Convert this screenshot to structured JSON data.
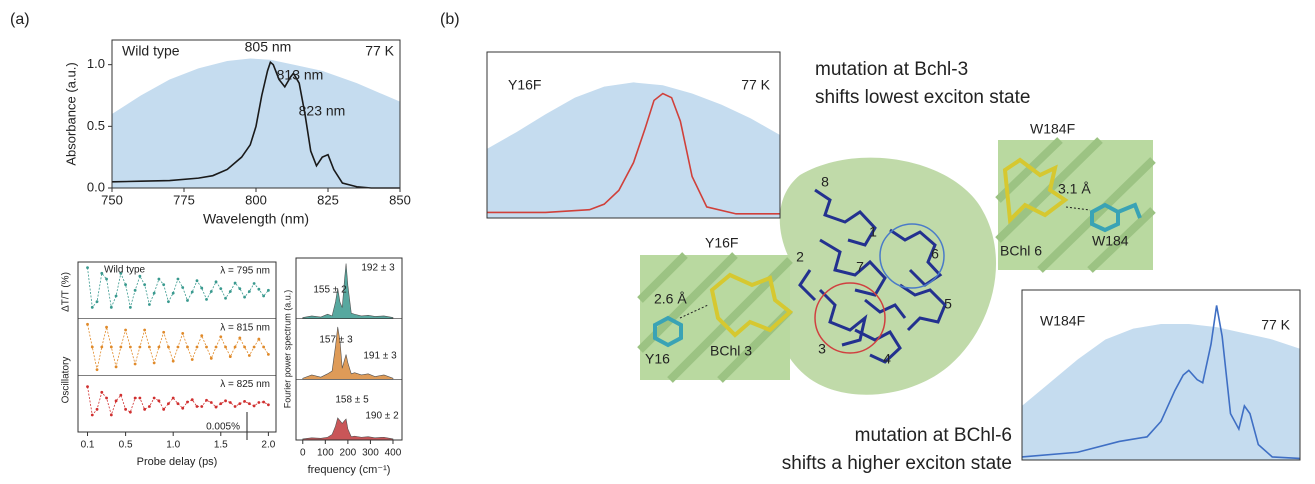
{
  "panel_labels": [
    "(a)",
    "(b)"
  ],
  "chart_data": [
    {
      "type": "line",
      "xlabel": "Wavelength (nm)",
      "ylabel": "Absorbance (a.u.)",
      "annotations": [
        "Wild type",
        "77 K",
        "805 nm",
        "813 nm",
        "823 nm"
      ],
      "xlim": [
        750,
        850
      ],
      "xticks": [
        750,
        775,
        800,
        825,
        850
      ],
      "ylim": [
        0,
        1.2
      ],
      "yticks": [
        {
          "value": 0,
          "label": "0.0"
        },
        0.5,
        {
          "value": 1,
          "label": "1.0"
        }
      ],
      "series": [
        {
          "color": "#c5dcef",
          "fill": true,
          "x": [
            750,
            760,
            770,
            780,
            790,
            798,
            805,
            813,
            823,
            835,
            850
          ],
          "values": [
            0.6,
            0.75,
            0.88,
            0.97,
            1.03,
            1.05,
            1.04,
            1.0,
            0.95,
            0.85,
            0.7
          ]
        },
        {
          "color": "#1a1a1a",
          "x": [
            750,
            760,
            770,
            780,
            785,
            790,
            795,
            798,
            800,
            802,
            804,
            805,
            806,
            808,
            810,
            812,
            813,
            815,
            817,
            819,
            821,
            823,
            825,
            827,
            830,
            835,
            840,
            850
          ],
          "values": [
            0.05,
            0.055,
            0.06,
            0.08,
            0.1,
            0.15,
            0.25,
            0.35,
            0.5,
            0.75,
            0.95,
            1.02,
            1.0,
            0.88,
            0.82,
            0.9,
            0.93,
            0.85,
            0.6,
            0.3,
            0.18,
            0.25,
            0.27,
            0.15,
            0.04,
            0.01,
            0,
            0
          ]
        }
      ]
    },
    {
      "type": "line",
      "panels": "separate",
      "markers": true,
      "xlabel": "Probe delay (ps)",
      "ylabels": [
        "ΔT/T (%)",
        "Oscillatory"
      ],
      "annotations": [
        "Wild type",
        "0.005%"
      ],
      "xlim": [
        0,
        2.08
      ],
      "xticks": [
        0.1,
        0.5,
        {
          "value": 1,
          "label": "1.0"
        },
        1.5,
        {
          "value": 2,
          "label": "2.0"
        }
      ],
      "ylim": [
        -0.005,
        0.005
      ],
      "x": [
        0.1,
        0.15,
        0.2,
        0.25,
        0.3,
        0.35,
        0.4,
        0.45,
        0.5,
        0.55,
        0.6,
        0.65,
        0.7,
        0.75,
        0.8,
        0.85,
        0.9,
        0.95,
        1,
        1.05,
        1.1,
        1.15,
        1.2,
        1.25,
        1.3,
        1.35,
        1.4,
        1.45,
        1.5,
        1.55,
        1.6,
        1.65,
        1.7,
        1.75,
        1.8,
        1.85,
        1.9,
        1.95,
        2
      ],
      "series": [
        {
          "name": "λ = 795 nm",
          "color": "#3a9a8f",
          "values": [
            0.004,
            -0.003,
            -0.002,
            0.003,
            0.002,
            -0.003,
            -0.001,
            0.003,
            0.001,
            -0.003,
            0,
            0.0025,
            0.001,
            -0.0025,
            -0.0005,
            0.002,
            0.001,
            -0.002,
            -0.0005,
            0.002,
            0.0005,
            -0.0018,
            -0.0003,
            0.0017,
            0.0004,
            -0.0016,
            -0.0002,
            0.0015,
            0.0003,
            -0.0014,
            -0.0002,
            0.0013,
            0.0003,
            -0.0012,
            -0.0002,
            0.0012,
            0.0002,
            -0.001,
            0
          ]
        },
        {
          "name": "λ = 815 nm",
          "color": "#e08a2a",
          "values": [
            0.004,
            0,
            -0.004,
            0,
            0.0035,
            0,
            -0.0035,
            0,
            0.003,
            0,
            -0.003,
            0,
            0.003,
            0,
            -0.0028,
            0,
            0.0026,
            0,
            -0.0025,
            0,
            0.0024,
            0,
            -0.0022,
            0,
            0.002,
            0,
            -0.002,
            0,
            0.0018,
            0,
            -0.0017,
            0,
            0.0016,
            0,
            -0.0015,
            0,
            0.0014,
            0,
            -0.0013
          ]
        },
        {
          "name": "λ = 825 nm",
          "color": "#d03030",
          "values": [
            0.003,
            -0.002,
            -0.001,
            0.002,
            0.001,
            -0.002,
            0.0005,
            0.0015,
            -0.001,
            -0.0015,
            0.001,
            0.001,
            -0.001,
            -0.0005,
            0.001,
            0.0005,
            -0.001,
            0,
            0.001,
            0,
            -0.0008,
            0.0003,
            0.0007,
            -0.0005,
            -0.0005,
            0.0006,
            0.0002,
            -0.0006,
            0,
            0.0005,
            0.0002,
            -0.0005,
            0,
            0.0004,
            0,
            -0.0004,
            0.0002,
            0.0003,
            -0.0002
          ]
        }
      ]
    },
    {
      "type": "area",
      "panels": "separate",
      "xlabel": "frequency (cm⁻¹)",
      "ylabel": "Fourier power spectrum (a.u.)",
      "xlim": [
        -30,
        440
      ],
      "xticks": [
        0,
        100,
        200,
        300,
        400
      ],
      "ylim": [
        0,
        1.1
      ],
      "x": [
        0,
        40,
        80,
        110,
        130,
        145,
        155,
        165,
        175,
        185,
        192,
        200,
        215,
        230,
        260,
        290,
        320,
        360,
        400
      ],
      "series": [
        {
          "color": "#3a9a8f",
          "peak_labels": [
            "155 ± 2",
            "192 ± 3"
          ],
          "values": [
            0.02,
            0.05,
            0.03,
            0.08,
            0.05,
            0.3,
            0.55,
            0.3,
            0.2,
            0.7,
            1.0,
            0.6,
            0.1,
            0.08,
            0.05,
            0.06,
            0.04,
            0.05,
            0.02
          ]
        },
        {
          "color": "#d98a3c",
          "peak_labels": [
            "157 ± 3",
            "191 ± 3"
          ],
          "values": [
            0.02,
            0.08,
            0.04,
            0.1,
            0.15,
            0.6,
            0.95,
            0.7,
            0.2,
            0.35,
            0.45,
            0.3,
            0.1,
            0.12,
            0.08,
            0.1,
            0.05,
            0.08,
            0.02
          ]
        },
        {
          "color": "#c0393b",
          "peak_labels": [
            "158 ± 5",
            "190 ± 2"
          ],
          "values": [
            0.02,
            0.04,
            0.03,
            0.05,
            0.1,
            0.25,
            0.4,
            0.35,
            0.3,
            0.35,
            0.38,
            0.2,
            0.06,
            0.07,
            0.05,
            0.06,
            0.04,
            0.05,
            0.02
          ]
        }
      ]
    },
    {
      "type": "line",
      "title": "Y16F",
      "annotations": [
        "77 K"
      ],
      "xlim": [
        750,
        850
      ],
      "ylim": [
        0,
        1.2
      ],
      "series": [
        {
          "color": "#c5dcef",
          "fill": true,
          "x": [
            750,
            760,
            770,
            780,
            790,
            800,
            810,
            820,
            830,
            840,
            850
          ],
          "values": [
            0.5,
            0.62,
            0.75,
            0.87,
            0.95,
            0.98,
            0.96,
            0.9,
            0.82,
            0.72,
            0.6
          ]
        },
        {
          "color": "#d0403a",
          "x": [
            750,
            770,
            785,
            790,
            795,
            800,
            804,
            807,
            810,
            813,
            816,
            820,
            825,
            835,
            850
          ],
          "values": [
            0.04,
            0.04,
            0.06,
            0.1,
            0.2,
            0.4,
            0.65,
            0.85,
            0.9,
            0.87,
            0.7,
            0.3,
            0.08,
            0.03,
            0.03
          ]
        }
      ]
    },
    {
      "type": "line",
      "title": "W184F",
      "annotations": [
        "77 K"
      ],
      "xlim": [
        750,
        850
      ],
      "ylim": [
        0,
        1.1
      ],
      "series": [
        {
          "color": "#c5dcef",
          "fill": true,
          "x": [
            750,
            760,
            770,
            780,
            790,
            800,
            810,
            820,
            830,
            840,
            850
          ],
          "values": [
            0.35,
            0.5,
            0.65,
            0.78,
            0.85,
            0.88,
            0.88,
            0.86,
            0.82,
            0.78,
            0.72
          ]
        },
        {
          "color": "#3f6fc4",
          "x": [
            750,
            770,
            785,
            795,
            800,
            805,
            808,
            810,
            813,
            815,
            818,
            820,
            822,
            825,
            828,
            830,
            832,
            835,
            840,
            850
          ],
          "values": [
            0.02,
            0.05,
            0.12,
            0.15,
            0.25,
            0.45,
            0.55,
            0.58,
            0.52,
            0.5,
            0.75,
            1.0,
            0.8,
            0.3,
            0.2,
            0.35,
            0.3,
            0.1,
            0.02,
            0.01
          ]
        }
      ]
    }
  ],
  "captions": [
    "mutation at Bchl-3",
    "shifts lowest exciton state",
    "mutation at BChl-6",
    "shifts a higher exciton state"
  ],
  "insets": [
    {
      "title": "W184F",
      "labels": [
        "3.1 Å",
        "BChl 6",
        "W184"
      ]
    },
    {
      "title": "Y16F",
      "labels": [
        "2.6 Å",
        "Y16",
        "BChl 3"
      ]
    }
  ],
  "sites": [
    "1",
    "2",
    "3",
    "4",
    "5",
    "6",
    "7",
    "8"
  ]
}
